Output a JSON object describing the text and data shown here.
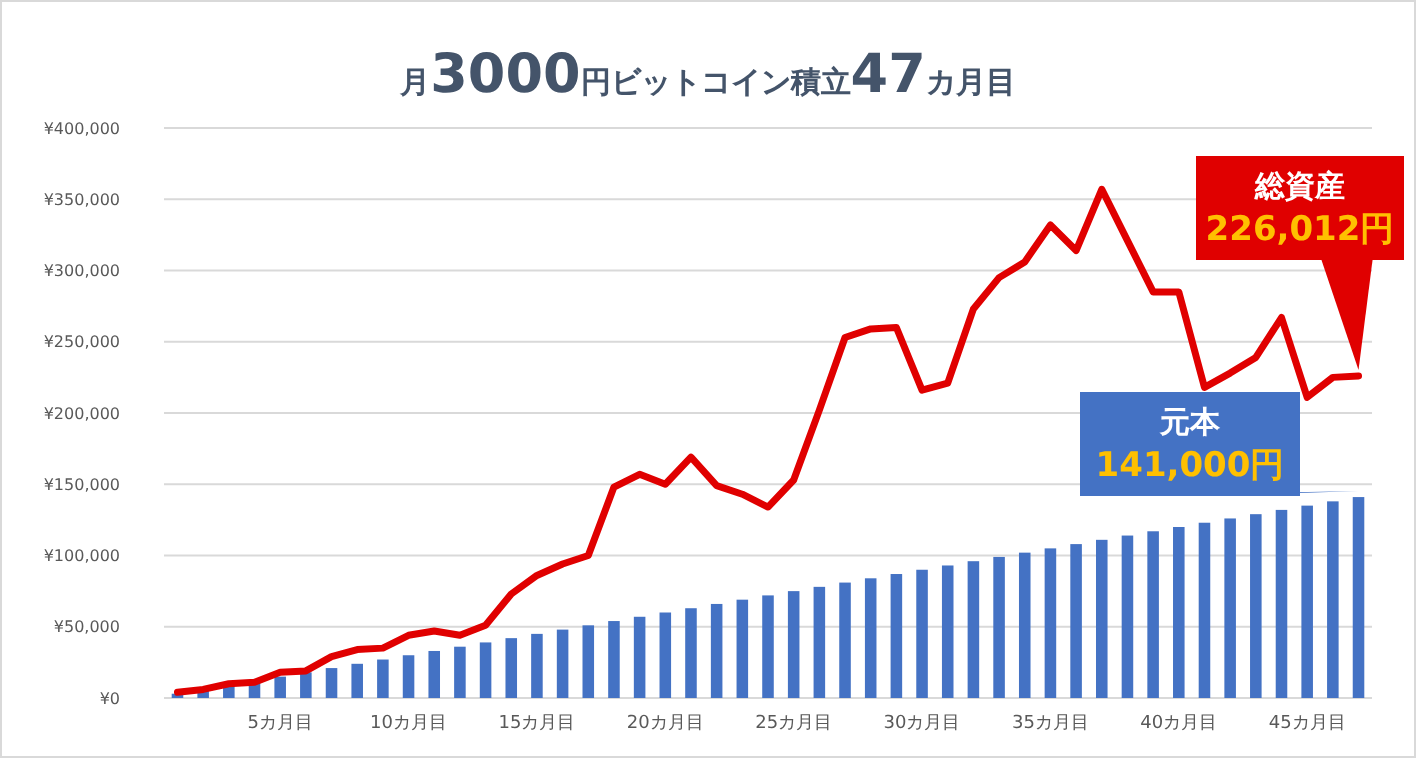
{
  "chart_data": {
    "type": "bar",
    "title": "月3000円ビットコイン積立47カ月目",
    "categories": [
      null,
      null,
      null,
      null,
      "5カ月目",
      null,
      null,
      null,
      null,
      "10カ月目",
      null,
      null,
      null,
      null,
      "15カ月目",
      null,
      null,
      null,
      null,
      "20カ月目",
      null,
      null,
      null,
      null,
      "25カ月目",
      null,
      null,
      null,
      null,
      "30カ月目",
      null,
      null,
      null,
      null,
      "35カ月目",
      null,
      null,
      null,
      null,
      "40カ月目",
      null,
      null,
      null,
      null,
      "45カ月目",
      null,
      null
    ],
    "series": [
      {
        "type": "line",
        "color": "#e00000",
        "values": [
          4000,
          6000,
          10000,
          11000,
          18000,
          19000,
          29000,
          34000,
          35000,
          44000,
          47000,
          44000,
          51000,
          73000,
          86000,
          94000,
          100000,
          148000,
          157000,
          150000,
          169000,
          149000,
          143000,
          134000,
          153000,
          202000,
          253000,
          259000,
          260000,
          216000,
          221000,
          273000,
          295000,
          306000,
          332000,
          314000,
          357000,
          321000,
          285000,
          285000,
          218000,
          228000,
          239000,
          267000,
          211000,
          225000,
          226000
        ]
      },
      {
        "color": "#4472c4",
        "values": [
          3000,
          6000,
          9000,
          12000,
          15000,
          18000,
          21000,
          24000,
          27000,
          30000,
          33000,
          36000,
          39000,
          42000,
          45000,
          48000,
          51000,
          54000,
          57000,
          60000,
          63000,
          66000,
          69000,
          72000,
          75000,
          78000,
          81000,
          84000,
          87000,
          90000,
          93000,
          96000,
          99000,
          102000,
          105000,
          108000,
          111000,
          114000,
          117000,
          120000,
          123000,
          126000,
          129000,
          132000,
          135000,
          138000,
          141000
        ]
      }
    ],
    "ylim": [
      0,
      400000
    ],
    "yticks": [
      {
        "value": 0,
        "label": "¥0"
      },
      {
        "value": 50000,
        "label": "¥50,000"
      },
      {
        "value": 100000,
        "label": "¥100,000"
      },
      {
        "value": 150000,
        "label": "¥150,000"
      },
      {
        "value": 200000,
        "label": "¥200,000"
      },
      {
        "value": 250000,
        "label": "¥250,000"
      },
      {
        "value": 300000,
        "label": "¥300,000"
      },
      {
        "value": 350000,
        "label": "¥350,000"
      },
      {
        "value": 400000,
        "label": "¥400,000"
      }
    ],
    "grid": "y",
    "annotations": [
      "総資産\n226,012円",
      "元本\n141,000円"
    ]
  }
}
